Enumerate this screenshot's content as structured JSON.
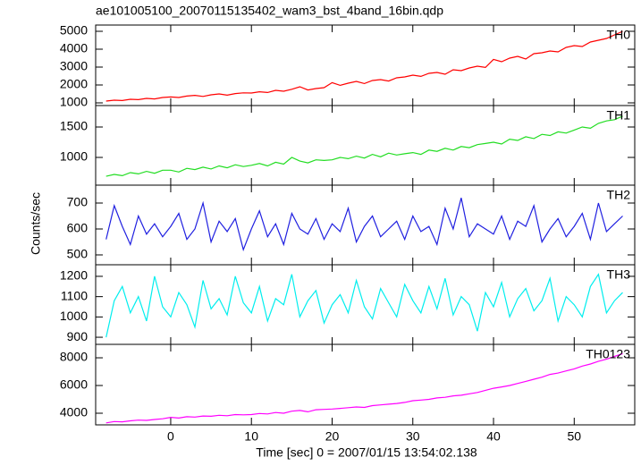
{
  "chart_data": {
    "type": "line",
    "title": "ae101005100_20070115135402_wam3_bst_4band_16bin.qdp",
    "xlabel": "Time [sec] 0 = 2007/01/15 13:54:02.138",
    "ylabel": "Counts/sec",
    "xlim": [
      -9.3,
      57.5
    ],
    "xticks": [
      0,
      10,
      20,
      30,
      40,
      50
    ],
    "x": [
      -8,
      -7,
      -6,
      -5,
      -4,
      -3,
      -2,
      -1,
      0,
      1,
      2,
      3,
      4,
      5,
      6,
      7,
      8,
      9,
      10,
      11,
      12,
      13,
      14,
      15,
      16,
      17,
      18,
      19,
      20,
      21,
      22,
      23,
      24,
      25,
      26,
      27,
      28,
      29,
      30,
      31,
      32,
      33,
      34,
      35,
      36,
      37,
      38,
      39,
      40,
      41,
      42,
      43,
      44,
      45,
      46,
      47,
      48,
      49,
      50,
      51,
      52,
      53,
      54,
      55,
      56
    ],
    "series": [
      {
        "name": "TH0",
        "color": "#ff0000",
        "ylim": [
          850,
          5350
        ],
        "yticks": [
          1000,
          2000,
          3000,
          4000,
          5000
        ],
        "values": [
          1100,
          1150,
          1130,
          1200,
          1180,
          1250,
          1220,
          1300,
          1330,
          1300,
          1380,
          1420,
          1360,
          1450,
          1500,
          1430,
          1520,
          1560,
          1550,
          1620,
          1580,
          1700,
          1650,
          1760,
          1900,
          1720,
          1800,
          1850,
          2130,
          1980,
          2100,
          2200,
          2080,
          2250,
          2300,
          2220,
          2400,
          2450,
          2550,
          2480,
          2650,
          2700,
          2600,
          2850,
          2800,
          2950,
          3050,
          2980,
          3430,
          3300,
          3500,
          3600,
          3450,
          3750,
          3800,
          3900,
          3850,
          4100,
          4200,
          4150,
          4400,
          4500,
          4600,
          4800,
          5000
        ]
      },
      {
        "name": "TH1",
        "color": "#22dd22",
        "ylim": [
          544,
          1853
        ],
        "yticks": [
          1000,
          1500
        ],
        "values": [
          690,
          720,
          700,
          750,
          730,
          770,
          740,
          790,
          790,
          760,
          820,
          800,
          840,
          810,
          860,
          830,
          880,
          850,
          870,
          900,
          860,
          920,
          890,
          1000,
          940,
          910,
          960,
          950,
          960,
          1000,
          980,
          1020,
          990,
          1050,
          1010,
          1070,
          1040,
          1060,
          1080,
          1050,
          1120,
          1100,
          1150,
          1120,
          1180,
          1160,
          1210,
          1230,
          1250,
          1220,
          1300,
          1280,
          1340,
          1310,
          1380,
          1360,
          1420,
          1400,
          1450,
          1500,
          1480,
          1560,
          1600,
          1620,
          1680
        ]
      },
      {
        "name": "TH2",
        "color": "#2020e0",
        "ylim": [
          462,
          769
        ],
        "yticks": [
          500,
          600,
          700
        ],
        "values": [
          560,
          690,
          610,
          540,
          650,
          580,
          620,
          570,
          610,
          660,
          560,
          600,
          700,
          550,
          630,
          590,
          640,
          520,
          600,
          670,
          570,
          620,
          540,
          660,
          600,
          580,
          640,
          560,
          620,
          590,
          680,
          550,
          610,
          650,
          570,
          600,
          630,
          560,
          650,
          590,
          610,
          540,
          680,
          600,
          720,
          570,
          620,
          600,
          580,
          650,
          560,
          630,
          610,
          690,
          550,
          600,
          640,
          570,
          610,
          660,
          560,
          700,
          590,
          620,
          650
        ]
      },
      {
        "name": "TH3",
        "color": "#00eeee",
        "ylim": [
          865,
          1257
        ],
        "yticks": [
          900,
          1000,
          1100,
          1200
        ],
        "values": [
          900,
          1080,
          1150,
          1020,
          1100,
          980,
          1200,
          1050,
          1000,
          1120,
          1060,
          950,
          1180,
          1040,
          1090,
          1010,
          1200,
          1070,
          1020,
          1150,
          980,
          1090,
          1060,
          1210,
          1000,
          1080,
          1130,
          970,
          1060,
          1110,
          1020,
          1180,
          1050,
          990,
          1140,
          1070,
          1000,
          1160,
          1080,
          1020,
          1150,
          1040,
          1190,
          1010,
          1100,
          1060,
          930,
          1120,
          1050,
          1170,
          1000,
          1090,
          1140,
          1030,
          1080,
          1190,
          980,
          1100,
          1060,
          1000,
          1150,
          1210,
          1020,
          1080,
          1120
        ]
      },
      {
        "name": "TH0123",
        "color": "#ff00ff",
        "ylim": [
          3160,
          8970
        ],
        "yticks": [
          4000,
          6000,
          8000
        ],
        "values": [
          3300,
          3400,
          3380,
          3450,
          3500,
          3480,
          3550,
          3600,
          3700,
          3650,
          3750,
          3720,
          3800,
          3780,
          3850,
          3820,
          3900,
          3880,
          3900,
          3980,
          3950,
          4050,
          4000,
          4150,
          4200,
          4100,
          4250,
          4280,
          4300,
          4350,
          4400,
          4450,
          4420,
          4550,
          4600,
          4650,
          4700,
          4780,
          4900,
          4950,
          5000,
          5100,
          5150,
          5250,
          5300,
          5400,
          5500,
          5650,
          5800,
          5900,
          6000,
          6150,
          6300,
          6450,
          6600,
          6800,
          6900,
          7050,
          7200,
          7400,
          7550,
          7750,
          7900,
          8100,
          8300
        ]
      }
    ]
  }
}
